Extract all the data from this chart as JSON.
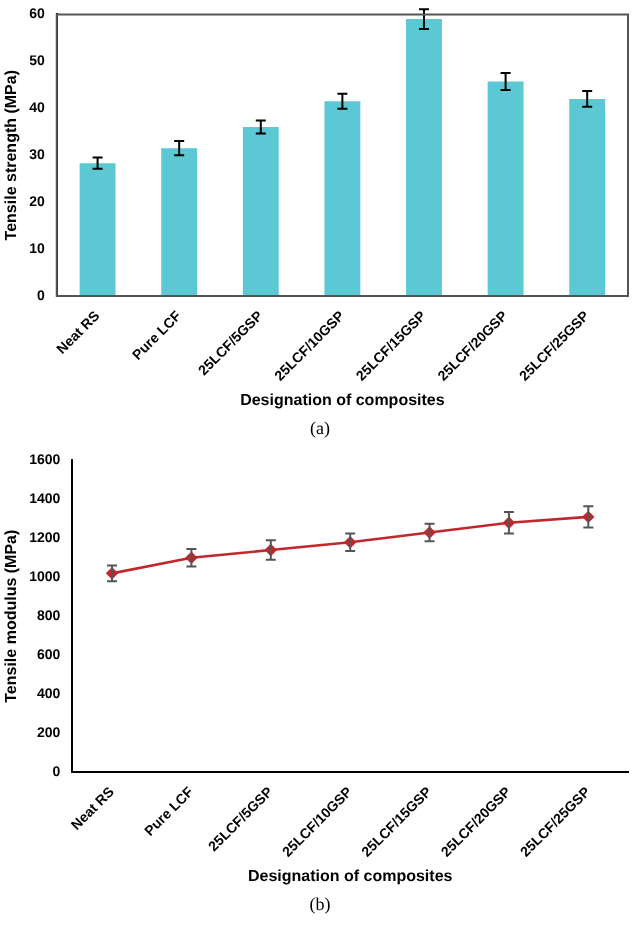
{
  "chart_data": [
    {
      "type": "bar",
      "xlabel": "Designation of composites",
      "ylabel": "Tensile strength (MPa)",
      "categories": [
        "Neat RS",
        "Pure LCF",
        "25LCF/5GSP",
        "25LCF/10GSP",
        "25LCF/15GSP",
        "25LCF/20GSP",
        "25LCF/25GSP"
      ],
      "series": [
        {
          "color": "#5bc8d4",
          "values": [
            28.3,
            31.5,
            36,
            41.5,
            59,
            45.7,
            42
          ],
          "errors": [
            1.2,
            1.5,
            1.4,
            1.6,
            2.1,
            1.8,
            1.7
          ]
        }
      ],
      "ylim": [
        0,
        60
      ],
      "yticks": [
        0,
        10,
        20,
        30,
        40,
        50,
        60
      ],
      "grid": false,
      "legend": false,
      "annotations": [
        "(a)"
      ]
    },
    {
      "type": "line",
      "xlabel": "Designation of composites",
      "ylabel": "Tensile modulus (MPa)",
      "categories": [
        "Neat RS",
        "Pure LCF",
        "25LCF/5GSP",
        "25LCF/10GSP",
        "25LCF/15GSP",
        "25LCF/20GSP",
        "25LCF/25GSP"
      ],
      "series": [
        {
          "color": "#c0282d",
          "values": [
            1020,
            1100,
            1140,
            1180,
            1230,
            1280,
            1310
          ],
          "errors": [
            40,
            45,
            50,
            45,
            45,
            55,
            55
          ]
        }
      ],
      "ylim": [
        0,
        1600
      ],
      "yticks": [
        0,
        200,
        400,
        600,
        800,
        1000,
        1200,
        1400,
        1600
      ],
      "grid": false,
      "legend": false,
      "marker": "diamond",
      "annotations": [
        "(b)"
      ]
    }
  ]
}
